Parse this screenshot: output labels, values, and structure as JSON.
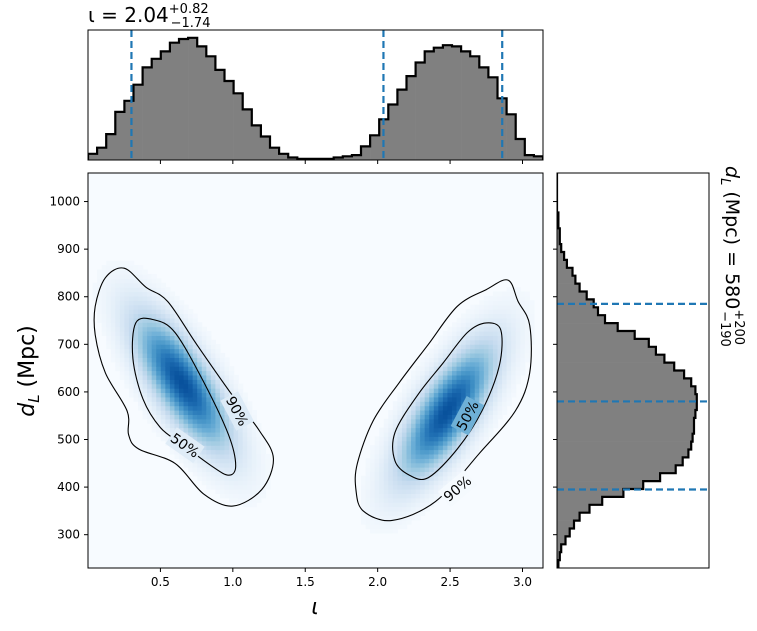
{
  "chart_data": [
    {
      "type": "heatmap",
      "panel": "joint",
      "xlabel": "ι",
      "ylabel_main": "d",
      "ylabel_sub": "L",
      "ylabel_unit": " (Mpc)",
      "xlim": [
        0.0,
        3.1416
      ],
      "ylim": [
        230,
        1060
      ],
      "xticks": [
        0.5,
        1.0,
        1.5,
        2.0,
        2.5,
        3.0
      ],
      "xtick_labels": [
        "0.5",
        "1.0",
        "1.5",
        "2.0",
        "2.5",
        "3.0"
      ],
      "yticks": [
        300,
        400,
        500,
        600,
        700,
        800,
        900,
        1000
      ],
      "ytick_labels": [
        "300",
        "400",
        "500",
        "600",
        "700",
        "800",
        "900",
        "1000"
      ],
      "colormap": [
        "#f7fbff",
        "#deebf7",
        "#c6dbef",
        "#9ecae1",
        "#6baed6",
        "#4292c6",
        "#2171b5",
        "#08519c"
      ],
      "modes": [
        {
          "center": [
            0.65,
            620
          ],
          "sx": 0.2,
          "sy": 85,
          "rho": -0.75
        },
        {
          "center": [
            2.48,
            560
          ],
          "sx": 0.2,
          "sy": 85,
          "rho": 0.75
        }
      ],
      "contours": [
        {
          "label": "50%",
          "level": 0.5,
          "color": "#000000",
          "paths": [
            [
              [
                0.33,
                745
              ],
              [
                0.45,
                752
              ],
              [
                0.6,
                725
              ],
              [
                0.8,
                620
              ],
              [
                0.97,
                510
              ],
              [
                1.02,
                445
              ],
              [
                0.97,
                425
              ],
              [
                0.85,
                445
              ],
              [
                0.65,
                490
              ],
              [
                0.5,
                525
              ],
              [
                0.38,
                585
              ],
              [
                0.31,
                670
              ]
            ],
            [
              [
                2.22,
                425
              ],
              [
                2.35,
                420
              ],
              [
                2.55,
                480
              ],
              [
                2.72,
                560
              ],
              [
                2.84,
                655
              ],
              [
                2.85,
                730
              ],
              [
                2.75,
                745
              ],
              [
                2.62,
                725
              ],
              [
                2.45,
                660
              ],
              [
                2.28,
                595
              ],
              [
                2.12,
                515
              ],
              [
                2.12,
                455
              ]
            ]
          ]
        },
        {
          "label": "90%",
          "level": 0.9,
          "color": "#000000",
          "paths": [
            [
              [
                0.05,
                780
              ],
              [
                0.12,
                840
              ],
              [
                0.25,
                860
              ],
              [
                0.4,
                820
              ],
              [
                0.55,
                790
              ],
              [
                0.75,
                700
              ],
              [
                0.98,
                600
              ],
              [
                1.18,
                520
              ],
              [
                1.28,
                460
              ],
              [
                1.2,
                395
              ],
              [
                1.0,
                360
              ],
              [
                0.8,
                385
              ],
              [
                0.6,
                450
              ],
              [
                0.35,
                480
              ],
              [
                0.28,
                510
              ],
              [
                0.27,
                560
              ],
              [
                0.12,
                640
              ],
              [
                0.05,
                720
              ]
            ],
            [
              [
                1.85,
                395
              ],
              [
                1.9,
                350
              ],
              [
                2.1,
                330
              ],
              [
                2.4,
                370
              ],
              [
                2.7,
                470
              ],
              [
                2.95,
                560
              ],
              [
                3.05,
                640
              ],
              [
                3.05,
                740
              ],
              [
                2.97,
                790
              ],
              [
                2.9,
                835
              ],
              [
                2.75,
                815
              ],
              [
                2.55,
                780
              ],
              [
                2.35,
                700
              ],
              [
                2.15,
                620
              ],
              [
                1.97,
                540
              ],
              [
                1.86,
                450
              ]
            ]
          ]
        }
      ],
      "contour_labels": [
        {
          "text": "90%",
          "at": [
            1.03,
            560
          ],
          "angle": 62
        },
        {
          "text": "50%",
          "at": [
            0.67,
            488
          ],
          "angle": 35
        },
        {
          "text": "50%",
          "at": [
            2.62,
            550
          ],
          "angle": -62
        },
        {
          "text": "90%",
          "at": [
            2.55,
            397
          ],
          "angle": -40
        }
      ]
    },
    {
      "type": "bar",
      "panel": "top-marginal",
      "variable": "ι",
      "title_prefix": "ι = 2.04",
      "title_sup": "+0.82",
      "title_sub": "−1.74",
      "xlim": [
        0.0,
        3.1416
      ],
      "bin_edges": [
        0.0,
        0.0628,
        0.1257,
        0.1885,
        0.2513,
        0.3142,
        0.377,
        0.4398,
        0.5027,
        0.5655,
        0.6283,
        0.6912,
        0.754,
        0.8168,
        0.8796,
        0.9425,
        1.0053,
        1.0681,
        1.131,
        1.1938,
        1.2566,
        1.3195,
        1.3823,
        1.4451,
        1.508,
        1.5708,
        1.6336,
        1.6965,
        1.7593,
        1.8221,
        1.885,
        1.9478,
        2.0106,
        2.0735,
        2.1363,
        2.1991,
        2.2619,
        2.3248,
        2.3876,
        2.4504,
        2.5133,
        2.5761,
        2.6389,
        2.7018,
        2.7646,
        2.8274,
        2.8903,
        2.9531,
        3.0159,
        3.0788,
        3.1416
      ],
      "values": [
        0.05,
        0.1,
        0.21,
        0.39,
        0.48,
        0.61,
        0.75,
        0.82,
        0.88,
        0.95,
        0.98,
        0.99,
        0.92,
        0.84,
        0.73,
        0.64,
        0.54,
        0.41,
        0.28,
        0.19,
        0.1,
        0.05,
        0.02,
        0.01,
        0.01,
        0.01,
        0.01,
        0.02,
        0.03,
        0.04,
        0.11,
        0.2,
        0.33,
        0.45,
        0.57,
        0.68,
        0.79,
        0.88,
        0.91,
        0.93,
        0.92,
        0.88,
        0.84,
        0.75,
        0.67,
        0.5,
        0.37,
        0.17,
        0.04,
        0.03
      ],
      "quantile_lines": [
        0.3,
        2.04,
        2.86
      ],
      "fill": "#808080",
      "edge": "#000000",
      "line_color": "#1f77b4"
    },
    {
      "type": "bar",
      "panel": "right-marginal",
      "orientation": "horizontal",
      "variable": "d_L",
      "title_main": "d",
      "title_sub_var": "L",
      "title_mid": " (Mpc) = 580",
      "title_sup": "+200",
      "title_sub": "−190",
      "ylim": [
        230,
        1060
      ],
      "bin_edges": [
        230,
        246.6,
        263.2,
        279.8,
        296.4,
        313,
        329.6,
        346.2,
        362.8,
        379.4,
        396,
        412.6,
        429.2,
        445.8,
        462.4,
        479,
        495.6,
        512.2,
        528.8,
        545.4,
        562,
        578.6,
        595.2,
        611.8,
        628.4,
        645,
        661.6,
        678.2,
        694.8,
        711.4,
        728,
        744.6,
        761.2,
        777.8,
        794.4,
        811,
        827.6,
        844.2,
        860.8,
        877.4,
        894,
        910.6,
        927.2,
        943.8,
        960.4,
        977,
        993.6,
        1010.2,
        1026.8,
        1043.4,
        1060
      ],
      "values": [
        0.01,
        0.02,
        0.03,
        0.06,
        0.09,
        0.12,
        0.16,
        0.23,
        0.32,
        0.47,
        0.61,
        0.73,
        0.84,
        0.89,
        0.93,
        0.95,
        0.96,
        0.97,
        0.97,
        0.98,
        0.99,
        0.99,
        0.98,
        0.95,
        0.9,
        0.83,
        0.76,
        0.7,
        0.65,
        0.55,
        0.43,
        0.34,
        0.29,
        0.26,
        0.21,
        0.16,
        0.13,
        0.11,
        0.07,
        0.05,
        0.03,
        0.02,
        0.02,
        0.01,
        0.01,
        0.0,
        0.0,
        0.0,
        0.0,
        0.0
      ],
      "quantile_lines": [
        395,
        580,
        785
      ],
      "fill": "#808080",
      "edge": "#000000",
      "line_color": "#1f77b4"
    }
  ]
}
